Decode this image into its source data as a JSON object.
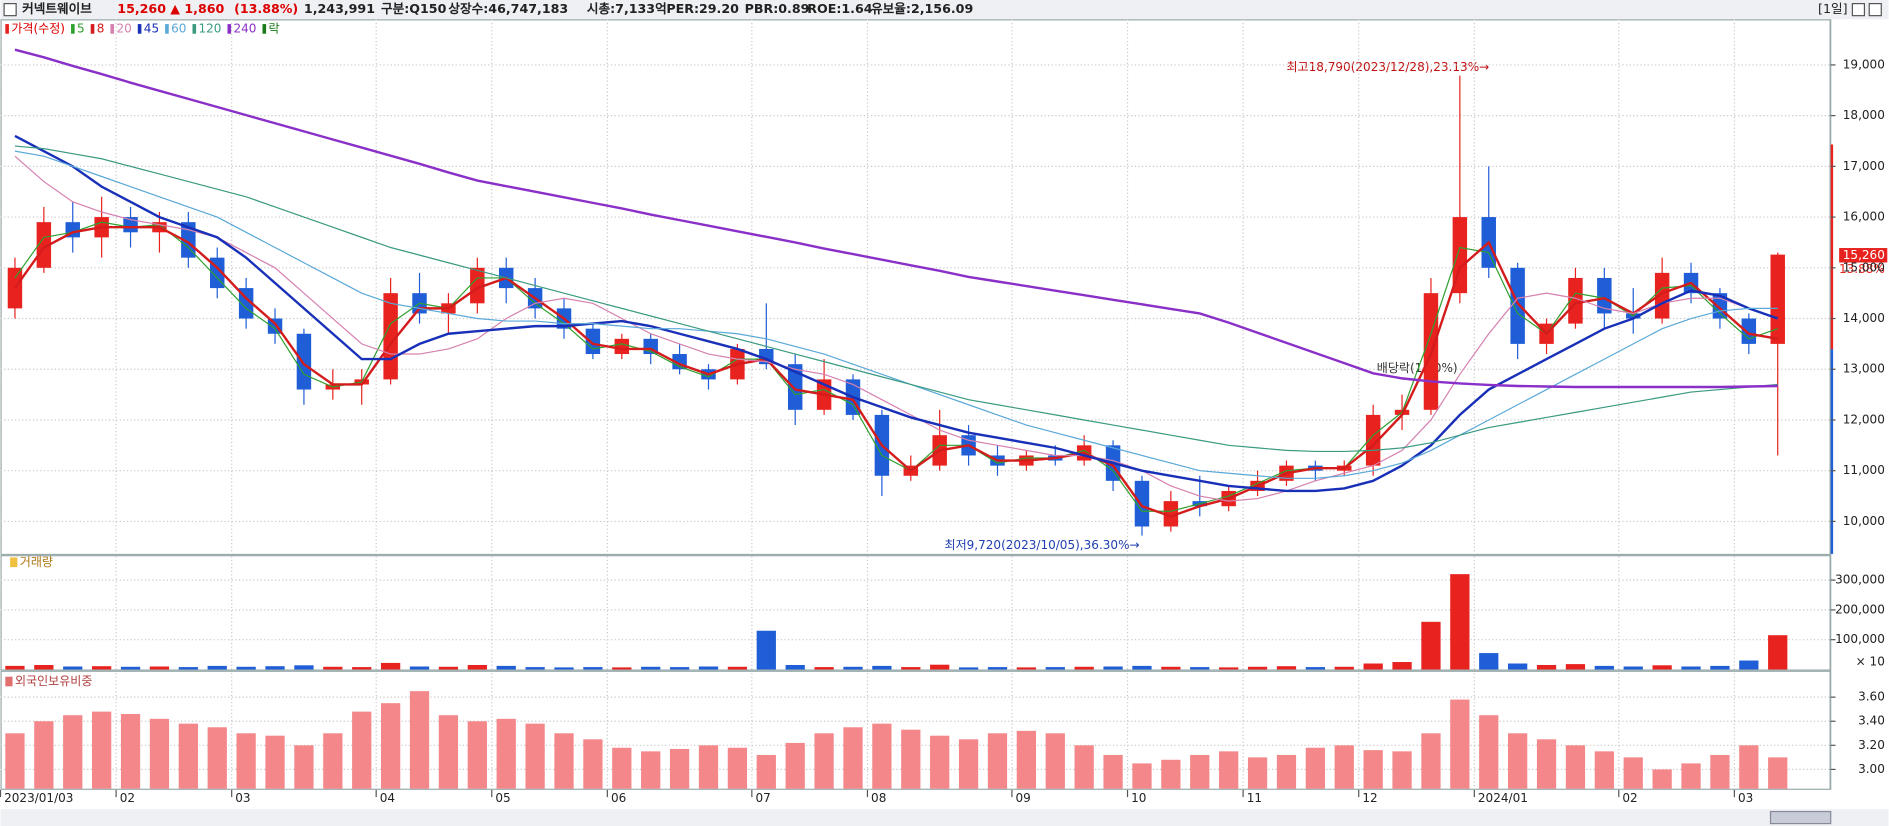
{
  "header": {
    "name": "커넥트웨이브",
    "price": "15,260",
    "change": "▲ 1,860",
    "change_pct": "(13.88%)",
    "volume": "1,243,991",
    "market": "구분:Q150",
    "listed": "상장수:46,747,183",
    "cap": "시총:7,133억",
    "per": "PER:29.20",
    "pbr": "PBR:0.89",
    "roe": "ROE:1.64",
    "reserve": "유보율:2,156.09",
    "period": "[1일]"
  },
  "chart_data": [
    {
      "type": "candlestick",
      "legend_price": "가격(수정)",
      "legend_ex": "락",
      "up_color": "#e8221e",
      "down_color": "#1f5ed6",
      "ex_color": "#1a7a1a",
      "categories": [
        "2023/01/03",
        null,
        null,
        null,
        "02",
        null,
        null,
        null,
        "03",
        null,
        null,
        null,
        null,
        "04",
        null,
        null,
        null,
        "05",
        null,
        null,
        null,
        "06",
        null,
        null,
        null,
        null,
        "07",
        null,
        null,
        null,
        "08",
        null,
        null,
        null,
        null,
        "09",
        null,
        null,
        null,
        "10",
        null,
        null,
        null,
        "11",
        null,
        null,
        null,
        "12",
        null,
        null,
        null,
        "2024/01",
        null,
        null,
        null,
        null,
        "02",
        null,
        null,
        null,
        "03",
        null
      ],
      "open": [
        14200,
        15000,
        15900,
        15600,
        16000,
        15700,
        15900,
        15200,
        14600,
        14000,
        13700,
        12600,
        12700,
        12800,
        14500,
        14100,
        14300,
        15000,
        14600,
        14200,
        13800,
        13300,
        13600,
        13300,
        13000,
        12800,
        13400,
        13100,
        12200,
        12800,
        12100,
        10900,
        11100,
        11700,
        11300,
        11100,
        11300,
        11200,
        11500,
        10800,
        9900,
        10400,
        10300,
        10600,
        10800,
        11100,
        11000,
        11100,
        12100,
        12200,
        14500,
        16000,
        15000,
        13500,
        13900,
        14800,
        14100,
        14000,
        14900,
        14500,
        14000,
        13500
      ],
      "high": [
        15200,
        16200,
        16300,
        16400,
        16200,
        16100,
        16100,
        15400,
        14800,
        14200,
        13800,
        13000,
        13000,
        14800,
        14900,
        14500,
        15200,
        15200,
        14800,
        14400,
        13900,
        13700,
        13700,
        13500,
        13100,
        13500,
        14300,
        13300,
        13200,
        12900,
        12200,
        11300,
        12200,
        11900,
        11500,
        11400,
        11500,
        11700,
        11600,
        10900,
        10600,
        10900,
        10700,
        11000,
        11200,
        11200,
        11200,
        12300,
        12500,
        14800,
        18790,
        17000,
        15100,
        14000,
        15000,
        15000,
        14600,
        15200,
        15100,
        14600,
        14100,
        15300
      ],
      "low": [
        14000,
        14900,
        15300,
        15200,
        15400,
        15300,
        15000,
        14400,
        13800,
        13500,
        12300,
        12400,
        12300,
        12700,
        13900,
        13700,
        14100,
        14300,
        14000,
        13600,
        13200,
        13200,
        13100,
        12900,
        12600,
        12700,
        13000,
        11900,
        12100,
        12000,
        10500,
        10800,
        11000,
        11100,
        10900,
        11000,
        11100,
        11100,
        10600,
        9720,
        9800,
        10100,
        10200,
        10500,
        10700,
        10800,
        10900,
        10900,
        11800,
        12100,
        14300,
        14800,
        13200,
        13300,
        13800,
        13800,
        13700,
        13900,
        14300,
        13800,
        13300,
        11300
      ],
      "close": [
        15000,
        15900,
        15600,
        16000,
        15700,
        15900,
        15200,
        14600,
        14000,
        13700,
        12600,
        12700,
        12800,
        14500,
        14100,
        14300,
        15000,
        14600,
        14200,
        13800,
        13300,
        13600,
        13300,
        13000,
        12800,
        13400,
        13100,
        12200,
        12800,
        12100,
        10900,
        11100,
        11700,
        11300,
        11100,
        11300,
        11200,
        11500,
        10800,
        9900,
        10400,
        10300,
        10600,
        10800,
        11100,
        11000,
        11100,
        12100,
        12200,
        14500,
        16000,
        15000,
        13500,
        13900,
        14800,
        14100,
        14000,
        14900,
        14500,
        14000,
        13500,
        15260
      ],
      "series": [
        {
          "name": "5",
          "color": "#2ea02e",
          "line_width": 1,
          "values": [
            14800,
            15600,
            15700,
            15900,
            15800,
            15850,
            15400,
            14800,
            14200,
            13800,
            12900,
            12650,
            12750,
            13900,
            14300,
            14200,
            14800,
            14800,
            14300,
            13900,
            13400,
            13500,
            13350,
            13050,
            12850,
            13200,
            13200,
            12500,
            12600,
            12300,
            11300,
            11000,
            11500,
            11500,
            11150,
            11250,
            11250,
            11400,
            11000,
            10200,
            10200,
            10350,
            10500,
            10750,
            11000,
            11050,
            11050,
            11700,
            12150,
            13700,
            15400,
            15300,
            14100,
            13700,
            14500,
            14400,
            14050,
            14600,
            14650,
            14100,
            13600,
            13800
          ]
        },
        {
          "name": "8",
          "color": "#d41c1c",
          "line_width": 2,
          "values": [
            14600,
            15400,
            15700,
            15800,
            15800,
            15800,
            15500,
            15000,
            14400,
            13900,
            13100,
            12700,
            12700,
            13500,
            14200,
            14200,
            14600,
            14800,
            14400,
            14000,
            13500,
            13400,
            13400,
            13100,
            12900,
            13100,
            13200,
            12600,
            12500,
            12400,
            11500,
            11000,
            11400,
            11500,
            11200,
            11200,
            11250,
            11350,
            11100,
            10300,
            10100,
            10300,
            10450,
            10700,
            10950,
            11050,
            11050,
            11500,
            12100,
            13300,
            15000,
            15500,
            14300,
            13700,
            14300,
            14400,
            14100,
            14500,
            14700,
            14200,
            13700,
            13600
          ]
        },
        {
          "name": "20",
          "color": "#d680b0",
          "line_width": 1,
          "values": [
            17200,
            16700,
            16300,
            16100,
            15950,
            15850,
            15750,
            15600,
            15300,
            15000,
            14500,
            14000,
            13500,
            13300,
            13300,
            13400,
            13600,
            14000,
            14300,
            14400,
            14300,
            14000,
            13700,
            13500,
            13300,
            13200,
            13150,
            13000,
            12900,
            12700,
            12400,
            12100,
            11800,
            11600,
            11500,
            11400,
            11300,
            11300,
            11200,
            11000,
            10700,
            10500,
            10400,
            10450,
            10600,
            10800,
            10950,
            11100,
            11400,
            12000,
            12900,
            13700,
            14400,
            14500,
            14400,
            14200,
            14100,
            14300,
            14400,
            14400,
            14200,
            14000
          ]
        },
        {
          "name": "45",
          "color": "#1830b8",
          "line_width": 2,
          "values": [
            17600,
            17300,
            17000,
            16600,
            16300,
            16000,
            15800,
            15600,
            15200,
            14700,
            14200,
            13700,
            13200,
            13200,
            13500,
            13700,
            13750,
            13800,
            13850,
            13850,
            13900,
            13950,
            13850,
            13700,
            13550,
            13400,
            13200,
            12950,
            12700,
            12450,
            12250,
            12050,
            11900,
            11750,
            11650,
            11550,
            11450,
            11300,
            11150,
            11000,
            10900,
            10800,
            10700,
            10650,
            10600,
            10600,
            10650,
            10800,
            11100,
            11500,
            12100,
            12600,
            12900,
            13200,
            13500,
            13800,
            14000,
            14300,
            14550,
            14450,
            14200,
            14000
          ]
        },
        {
          "name": "60",
          "color": "#5aa8d8",
          "line_width": 1,
          "values": [
            17300,
            17200,
            17000,
            16800,
            16600,
            16400,
            16200,
            16000,
            15700,
            15400,
            15100,
            14800,
            14500,
            14300,
            14200,
            14100,
            14000,
            13950,
            13950,
            13900,
            13900,
            13850,
            13800,
            13800,
            13750,
            13700,
            13600,
            13450,
            13300,
            13100,
            12900,
            12700,
            12500,
            12300,
            12100,
            11900,
            11750,
            11600,
            11450,
            11300,
            11150,
            11000,
            10950,
            10900,
            10850,
            10850,
            10900,
            11000,
            11150,
            11400,
            11700,
            12000,
            12300,
            12600,
            12900,
            13200,
            13500,
            13800,
            14000,
            14150,
            14200,
            14200
          ]
        },
        {
          "name": "120",
          "color": "#3a9a80",
          "line_width": 1,
          "values": [
            17400,
            17350,
            17250,
            17150,
            17000,
            16850,
            16700,
            16550,
            16400,
            16200,
            16000,
            15800,
            15600,
            15400,
            15250,
            15100,
            14950,
            14800,
            14650,
            14500,
            14350,
            14200,
            14050,
            13900,
            13750,
            13600,
            13450,
            13300,
            13150,
            13000,
            12850,
            12700,
            12550,
            12400,
            12300,
            12200,
            12100,
            12000,
            11900,
            11800,
            11700,
            11600,
            11500,
            11450,
            11400,
            11380,
            11380,
            11400,
            11450,
            11550,
            11700,
            11850,
            11950,
            12050,
            12150,
            12250,
            12350,
            12450,
            12550,
            12600,
            12650,
            12700
          ]
        },
        {
          "name": "240",
          "color": "#8a30c8",
          "line_width": 2,
          "values": [
            19300,
            19150,
            18980,
            18820,
            18650,
            18490,
            18330,
            18170,
            18010,
            17850,
            17690,
            17530,
            17370,
            17210,
            17050,
            16880,
            16720,
            16610,
            16500,
            16390,
            16280,
            16170,
            16050,
            15940,
            15830,
            15720,
            15610,
            15500,
            15380,
            15270,
            15160,
            15050,
            14940,
            14820,
            14730,
            14640,
            14550,
            14460,
            14370,
            14280,
            14190,
            14100,
            13920,
            13720,
            13520,
            13320,
            13120,
            12920,
            12820,
            12760,
            12720,
            12690,
            12670,
            12660,
            12650,
            12650,
            12650,
            12650,
            12650,
            12650,
            12660,
            12670
          ]
        }
      ],
      "ylim": [
        9360,
        19900
      ],
      "yticks": [
        {
          "value": 10000,
          "label": "10,000"
        },
        {
          "value": 11000,
          "label": "11,000"
        },
        {
          "value": 12000,
          "label": "12,000"
        },
        {
          "value": 13000,
          "label": "13,000"
        },
        {
          "value": 14000,
          "label": "14,000"
        },
        {
          "value": 15000,
          "label": "15,000"
        },
        {
          "value": 16000,
          "label": "16,000"
        },
        {
          "value": 17000,
          "label": "17,000"
        },
        {
          "value": 18000,
          "label": "18,000"
        },
        {
          "value": 19000,
          "label": "19,000"
        }
      ],
      "annotations": [
        "최고18,790(2023/12/28),23.13%→",
        "최저9,720(2023/10/05),36.30%→",
        "배당락(1.00%)"
      ],
      "last_label": "15,260",
      "last_pct": "13.88%",
      "grid": true
    },
    {
      "type": "bar",
      "title": "거래량",
      "unit_label": "× 10",
      "values": [
        12000,
        15000,
        10000,
        11000,
        9000,
        10000,
        8000,
        12000,
        9000,
        11000,
        14000,
        9000,
        8000,
        22000,
        10000,
        9000,
        15000,
        12000,
        8000,
        7000,
        8000,
        7000,
        9000,
        8000,
        10000,
        9000,
        130000,
        15000,
        8000,
        9000,
        12000,
        8000,
        16000,
        7000,
        8000,
        7000,
        8000,
        9000,
        10000,
        12000,
        9000,
        8000,
        7000,
        9000,
        11000,
        8000,
        9000,
        20000,
        25000,
        160000,
        320000,
        55000,
        20000,
        15000,
        18000,
        12000,
        10000,
        14000,
        10000,
        12000,
        30000,
        115000
      ],
      "ylim": [
        0,
        380000
      ],
      "yticks": [
        {
          "value": 100000,
          "label": "100,000"
        },
        {
          "value": 200000,
          "label": "200,000"
        },
        {
          "value": 300000,
          "label": "300,000"
        }
      ],
      "grid": true
    },
    {
      "type": "bar",
      "title": "외국인보유비중",
      "color": "#f4878a",
      "values": [
        3.3,
        3.4,
        3.45,
        3.48,
        3.46,
        3.42,
        3.38,
        3.35,
        3.3,
        3.28,
        3.2,
        3.3,
        3.48,
        3.55,
        3.65,
        3.45,
        3.4,
        3.42,
        3.38,
        3.3,
        3.25,
        3.18,
        3.15,
        3.17,
        3.2,
        3.18,
        3.12,
        3.22,
        3.3,
        3.35,
        3.38,
        3.33,
        3.28,
        3.25,
        3.3,
        3.32,
        3.3,
        3.2,
        3.12,
        3.05,
        3.08,
        3.12,
        3.15,
        3.1,
        3.12,
        3.18,
        3.2,
        3.16,
        3.15,
        3.3,
        3.58,
        3.45,
        3.3,
        3.25,
        3.2,
        3.15,
        3.1,
        3.0,
        3.05,
        3.12,
        3.2,
        3.1
      ],
      "ylim": [
        2.84,
        3.8
      ],
      "yticks": [
        {
          "value": 3,
          "label": "3.00"
        },
        {
          "value": 3.2,
          "label": "3.20"
        },
        {
          "value": 3.4,
          "label": "3.40"
        },
        {
          "value": 3.6,
          "label": "3.60"
        }
      ],
      "grid": true
    }
  ]
}
